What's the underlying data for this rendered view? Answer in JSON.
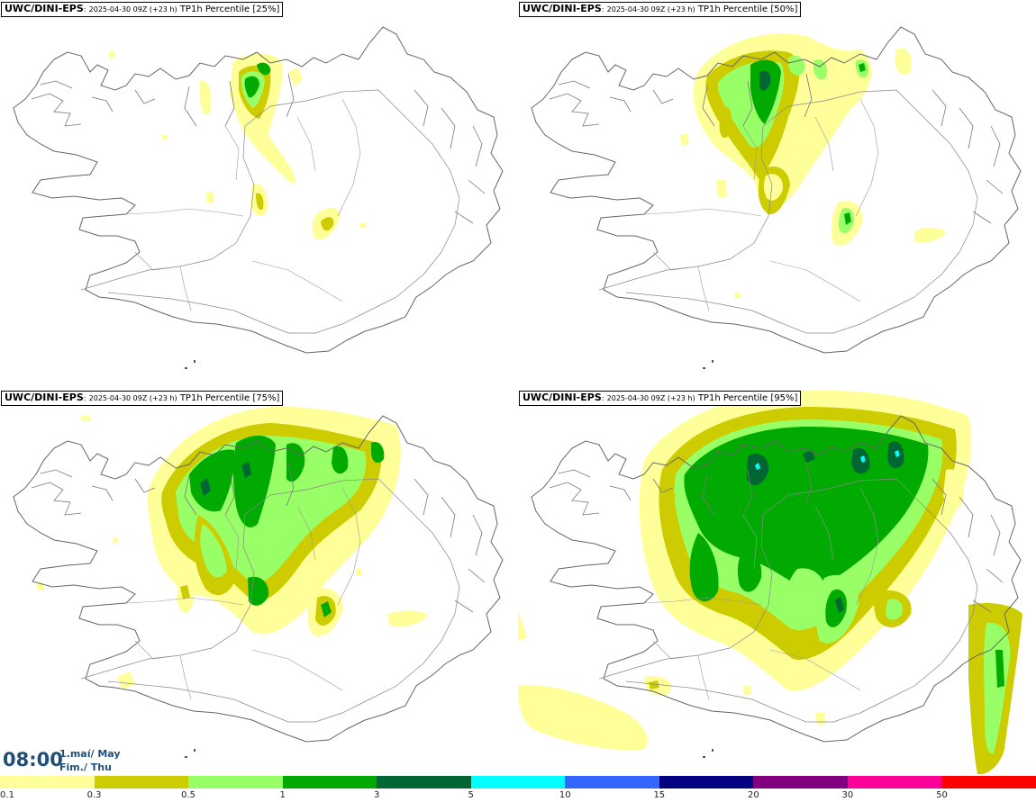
{
  "panels": [
    {
      "model": "UWC/DINI-EPS",
      "sep": ":",
      "run": "2025-04-30 09Z (+23 h)",
      "field": "TP1h Percentile [25%]"
    },
    {
      "model": "UWC/DINI-EPS",
      "sep": ":",
      "run": "2025-04-30 09Z (+23 h)",
      "field": "TP1h Percentile [50%]"
    },
    {
      "model": "UWC/DINI-EPS",
      "sep": ":",
      "run": "2025-04-30 09Z (+23 h)",
      "field": "TP1h Percentile [75%]"
    },
    {
      "model": "UWC/DINI-EPS",
      "sep": ":",
      "run": "2025-04-30 09Z (+23 h)",
      "field": "TP1h Percentile [95%]"
    }
  ],
  "valid_time": {
    "time": "08:00",
    "date_line1": "1.maí/ May",
    "date_line2": "Fim./ Thu"
  },
  "legend": {
    "colors": [
      "#ffff99",
      "#cccc00",
      "#99ff66",
      "#00aa00",
      "#006633",
      "#00ffff",
      "#3366ff",
      "#000080",
      "#800080",
      "#ff0099",
      "#ff0000"
    ],
    "labels": [
      "0.1",
      "0.3",
      "0.5",
      "1",
      "3",
      "5",
      "10",
      "15",
      "20",
      "30",
      "50"
    ]
  }
}
